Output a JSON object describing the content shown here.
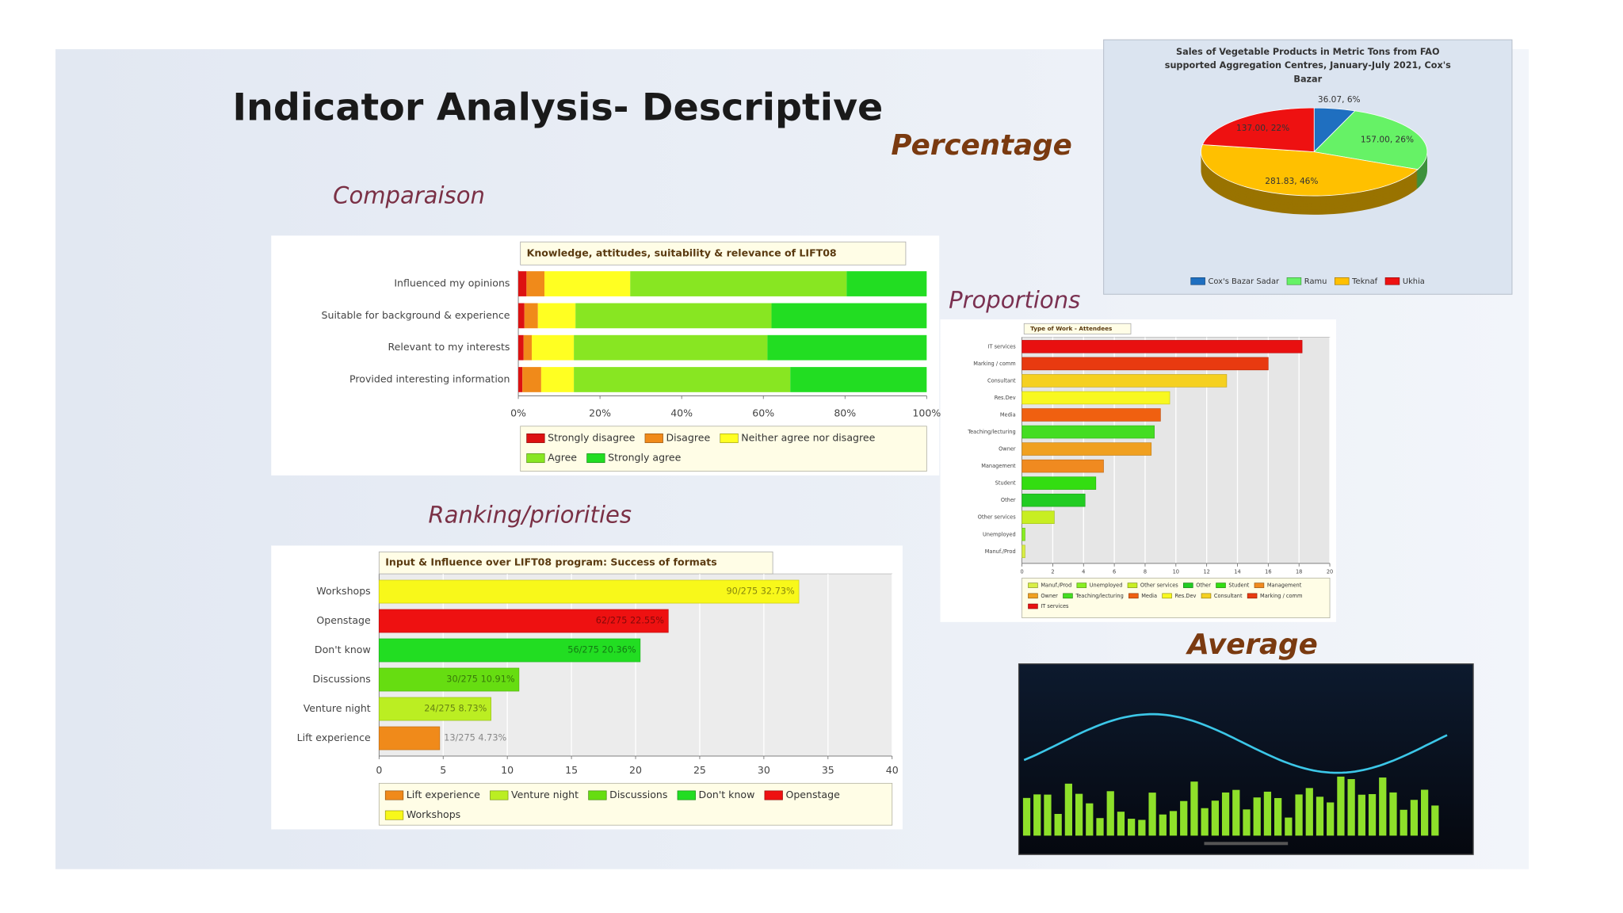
{
  "slide": {
    "title": "Indicator Analysis- Descriptive",
    "labels": [
      "Percentage",
      "Comparaison",
      "Proportions",
      "Ranking/priorities",
      "Average"
    ]
  },
  "chart_data": [
    {
      "type": "pie",
      "title": "Sales of Vegetable Products in Metric Tons from FAO supported Aggregation Centres, January-July 2021, Cox's Bazar",
      "categories": [
        "Cox's Bazar Sadar",
        "Ramu",
        "Teknaf",
        "Ukhia"
      ],
      "values": [
        36.07,
        157.0,
        281.83,
        137.0
      ],
      "value_labels": [
        "36.07, 6%",
        "157.00, 26%",
        "281.83, 46%",
        "137.00, 22%"
      ],
      "colors": [
        "#1f6fc0",
        "#66f266",
        "#ffc000",
        "#ee1111"
      ],
      "legend": "bottom"
    },
    {
      "type": "stacked_bar",
      "orientation": "horizontal",
      "title": "Knowledge, attitudes, suitability & relevance of LIFT08",
      "categories": [
        "Influenced my opinions",
        "Suitable for background & experience",
        "Relevant to my interests",
        "Provided interesting information"
      ],
      "series": [
        {
          "name": "Strongly disagree",
          "color": "#dd1111",
          "values": [
            2,
            1.5,
            1.3,
            1
          ]
        },
        {
          "name": "Disagree",
          "color": "#f08a1a",
          "values": [
            4.4,
            3.3,
            2,
            4.6
          ]
        },
        {
          "name": "Neither agree nor disagree",
          "color": "#ffff22",
          "values": [
            21,
            9.2,
            10.3,
            8
          ]
        },
        {
          "name": "Agree",
          "color": "#88e622",
          "values": [
            53,
            48,
            47.4,
            53
          ]
        },
        {
          "name": "Strongly agree",
          "color": "#22dd22",
          "values": [
            19.6,
            38,
            39,
            33.4
          ]
        }
      ],
      "xlim": [
        0,
        100
      ],
      "xticks": [
        {
          "value": 0,
          "label": "0%"
        },
        {
          "value": 20,
          "label": "20%"
        },
        {
          "value": 40,
          "label": "40%"
        },
        {
          "value": 60,
          "label": "60%"
        },
        {
          "value": 80,
          "label": "80%"
        },
        {
          "value": 100,
          "label": "100%"
        }
      ],
      "grid": false,
      "legend": "bottom"
    },
    {
      "type": "bar",
      "orientation": "horizontal",
      "title": "Input & Influence over LIFT08 program: Success of formats",
      "categories": [
        "Workshops",
        "Openstage",
        "Don't know",
        "Discussions",
        "Venture night",
        "Lift experience"
      ],
      "values": [
        32.73,
        22.55,
        20.36,
        10.91,
        8.73,
        4.73
      ],
      "value_labels": [
        "90/275 32.73%",
        "62/275 22.55%",
        "56/275 20.36%",
        "30/275 10.91%",
        "24/275 8.73%",
        "13/275 4.73%"
      ],
      "colors": [
        "#f8f81a",
        "#ee1111",
        "#22dd22",
        "#66dd11",
        "#bbee22",
        "#f08a1a"
      ],
      "xlim": [
        0,
        40
      ],
      "xticks": [
        0,
        5,
        10,
        15,
        20,
        25,
        30,
        35,
        40
      ],
      "grid": true,
      "legend": "bottom"
    },
    {
      "type": "bar",
      "orientation": "horizontal",
      "title": "Type of Work - Attendees",
      "categories": [
        "IT services",
        "Marking / comm",
        "Consultant",
        "Res.Dev",
        "Media",
        "Teaching/lecturing",
        "Owner",
        "Management",
        "Student",
        "Other",
        "Other services",
        "Unemployed",
        "Manuf./Prod"
      ],
      "values": [
        18.2,
        16,
        13.3,
        9.6,
        9.0,
        8.6,
        8.4,
        5.3,
        4.8,
        4.1,
        2.1,
        0.2,
        0.2
      ],
      "colors": [
        "#e81010",
        "#e83a10",
        "#f5d020",
        "#f8f820",
        "#f06010",
        "#44dd22",
        "#f0a020",
        "#f08a20",
        "#33dd11",
        "#22cc22",
        "#c8ee22",
        "#88ee22",
        "#d8ee44"
      ],
      "xlim": [
        0,
        20
      ],
      "xticks": [
        0,
        2,
        4,
        6,
        8,
        10,
        12,
        14,
        16,
        18,
        20
      ],
      "grid": true,
      "legend": "bottom"
    }
  ]
}
